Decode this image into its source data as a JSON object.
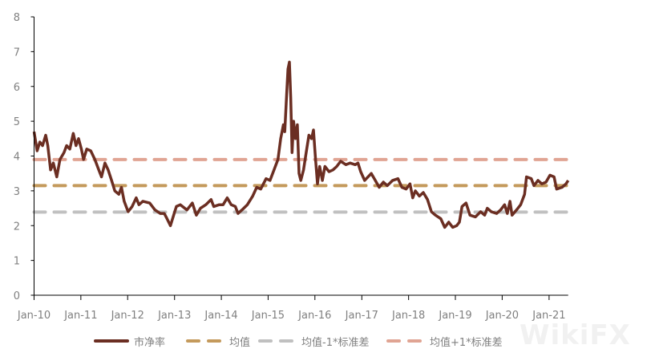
{
  "chart_data": {
    "type": "line",
    "title": "",
    "xlabel": "",
    "ylabel": "",
    "ylim": [
      0,
      8
    ],
    "yticks": [
      "0",
      "1",
      "2",
      "3",
      "4",
      "5",
      "6",
      "7",
      "8"
    ],
    "xlim": [
      "2010-01-01",
      "2021-05-30"
    ],
    "xticks": [
      {
        "date": "2010-01-01",
        "label": "Jan-10"
      },
      {
        "date": "2011-01-01",
        "label": "Jan-11"
      },
      {
        "date": "2012-01-01",
        "label": "Jan-12"
      },
      {
        "date": "2013-01-01",
        "label": "Jan-13"
      },
      {
        "date": "2014-01-01",
        "label": "Jan-14"
      },
      {
        "date": "2015-01-01",
        "label": "Jan-15"
      },
      {
        "date": "2016-01-01",
        "label": "Jan-16"
      },
      {
        "date": "2017-01-01",
        "label": "Jan-17"
      },
      {
        "date": "2018-01-01",
        "label": "Jan-18"
      },
      {
        "date": "2019-01-01",
        "label": "Jan-19"
      },
      {
        "date": "2020-01-01",
        "label": "Jan-20"
      },
      {
        "date": "2021-01-01",
        "label": "Jan-21"
      }
    ],
    "grid": false,
    "legend_placement": "bottom",
    "series": [
      {
        "name": "市净率",
        "color": "#6b2e22",
        "style": "solid",
        "points": [
          [
            "2010-01-01",
            4.7
          ],
          [
            "2010-01-25",
            4.15
          ],
          [
            "2010-02-15",
            4.4
          ],
          [
            "2010-03-08",
            4.3
          ],
          [
            "2010-04-02",
            4.6
          ],
          [
            "2010-04-18",
            4.3
          ],
          [
            "2010-05-10",
            3.6
          ],
          [
            "2010-05-31",
            3.8
          ],
          [
            "2010-06-27",
            3.4
          ],
          [
            "2010-07-22",
            3.9
          ],
          [
            "2010-08-22",
            4.1
          ],
          [
            "2010-09-12",
            4.3
          ],
          [
            "2010-10-07",
            4.2
          ],
          [
            "2010-11-03",
            4.65
          ],
          [
            "2010-11-24",
            4.3
          ],
          [
            "2010-12-14",
            4.5
          ],
          [
            "2011-01-05",
            4.2
          ],
          [
            "2011-01-22",
            3.9
          ],
          [
            "2011-02-16",
            4.2
          ],
          [
            "2011-03-19",
            4.15
          ],
          [
            "2011-04-20",
            3.9
          ],
          [
            "2011-05-21",
            3.6
          ],
          [
            "2011-06-11",
            3.4
          ],
          [
            "2011-07-08",
            3.8
          ],
          [
            "2011-08-02",
            3.6
          ],
          [
            "2011-08-29",
            3.3
          ],
          [
            "2011-09-23",
            3.0
          ],
          [
            "2011-10-24",
            2.9
          ],
          [
            "2011-11-14",
            3.1
          ],
          [
            "2011-12-05",
            2.7
          ],
          [
            "2012-01-05",
            2.4
          ],
          [
            "2012-02-05",
            2.55
          ],
          [
            "2012-03-08",
            2.8
          ],
          [
            "2012-03-29",
            2.6
          ],
          [
            "2012-04-29",
            2.7
          ],
          [
            "2012-06-21",
            2.65
          ],
          [
            "2012-08-01",
            2.45
          ],
          [
            "2012-09-12",
            2.35
          ],
          [
            "2012-10-13",
            2.35
          ],
          [
            "2012-11-03",
            2.2
          ],
          [
            "2012-11-30",
            2.0
          ],
          [
            "2012-12-25",
            2.3
          ],
          [
            "2013-01-15",
            2.55
          ],
          [
            "2013-02-15",
            2.6
          ],
          [
            "2013-04-08",
            2.45
          ],
          [
            "2013-05-20",
            2.65
          ],
          [
            "2013-06-20",
            2.3
          ],
          [
            "2013-07-22",
            2.5
          ],
          [
            "2013-09-02",
            2.6
          ],
          [
            "2013-10-13",
            2.75
          ],
          [
            "2013-11-03",
            2.55
          ],
          [
            "2013-12-15",
            2.6
          ],
          [
            "2014-01-15",
            2.6
          ],
          [
            "2014-02-16",
            2.8
          ],
          [
            "2014-03-19",
            2.6
          ],
          [
            "2014-04-20",
            2.55
          ],
          [
            "2014-05-11",
            2.35
          ],
          [
            "2014-06-11",
            2.45
          ],
          [
            "2014-07-23",
            2.6
          ],
          [
            "2014-09-03",
            2.85
          ],
          [
            "2014-10-04",
            3.1
          ],
          [
            "2014-11-04",
            3.05
          ],
          [
            "2014-12-16",
            3.35
          ],
          [
            "2015-01-16",
            3.3
          ],
          [
            "2015-02-16",
            3.6
          ],
          [
            "2015-03-19",
            3.9
          ],
          [
            "2015-04-09",
            4.5
          ],
          [
            "2015-04-30",
            4.9
          ],
          [
            "2015-05-11",
            4.7
          ],
          [
            "2015-05-26",
            5.8
          ],
          [
            "2015-06-05",
            6.5
          ],
          [
            "2015-06-16",
            6.7
          ],
          [
            "2015-06-26",
            5.7
          ],
          [
            "2015-07-07",
            4.1
          ],
          [
            "2015-07-19",
            5.0
          ],
          [
            "2015-08-03",
            4.5
          ],
          [
            "2015-08-17",
            4.9
          ],
          [
            "2015-08-30",
            3.5
          ],
          [
            "2015-09-13",
            3.3
          ],
          [
            "2015-10-04",
            3.6
          ],
          [
            "2015-10-25",
            4.1
          ],
          [
            "2015-11-15",
            4.6
          ],
          [
            "2015-12-06",
            4.5
          ],
          [
            "2015-12-21",
            4.75
          ],
          [
            "2016-01-06",
            3.9
          ],
          [
            "2016-01-21",
            3.2
          ],
          [
            "2016-02-07",
            3.7
          ],
          [
            "2016-02-28",
            3.3
          ],
          [
            "2016-03-19",
            3.7
          ],
          [
            "2016-04-20",
            3.55
          ],
          [
            "2016-05-21",
            3.6
          ],
          [
            "2016-06-19",
            3.7
          ],
          [
            "2016-07-20",
            3.85
          ],
          [
            "2016-08-30",
            3.75
          ],
          [
            "2016-10-01",
            3.8
          ],
          [
            "2016-11-11",
            3.75
          ],
          [
            "2016-12-02",
            3.8
          ],
          [
            "2016-12-23",
            3.55
          ],
          [
            "2017-01-23",
            3.3
          ],
          [
            "2017-03-16",
            3.5
          ],
          [
            "2017-04-16",
            3.3
          ],
          [
            "2017-05-17",
            3.1
          ],
          [
            "2017-06-18",
            3.25
          ],
          [
            "2017-07-19",
            3.15
          ],
          [
            "2017-08-29",
            3.3
          ],
          [
            "2017-10-10",
            3.35
          ],
          [
            "2017-11-10",
            3.1
          ],
          [
            "2017-12-12",
            3.05
          ],
          [
            "2018-01-12",
            3.2
          ],
          [
            "2018-02-02",
            2.8
          ],
          [
            "2018-02-23",
            3.0
          ],
          [
            "2018-03-26",
            2.85
          ],
          [
            "2018-04-26",
            2.95
          ],
          [
            "2018-05-28",
            2.75
          ],
          [
            "2018-06-28",
            2.4
          ],
          [
            "2018-07-29",
            2.3
          ],
          [
            "2018-09-09",
            2.2
          ],
          [
            "2018-10-10",
            1.95
          ],
          [
            "2018-11-10",
            2.1
          ],
          [
            "2018-12-11",
            1.95
          ],
          [
            "2019-01-11",
            2.0
          ],
          [
            "2019-02-01",
            2.1
          ],
          [
            "2019-02-22",
            2.55
          ],
          [
            "2019-03-25",
            2.65
          ],
          [
            "2019-04-25",
            2.3
          ],
          [
            "2019-06-06",
            2.25
          ],
          [
            "2019-07-17",
            2.4
          ],
          [
            "2019-08-17",
            2.3
          ],
          [
            "2019-09-07",
            2.5
          ],
          [
            "2019-10-08",
            2.4
          ],
          [
            "2019-11-19",
            2.35
          ],
          [
            "2019-12-20",
            2.45
          ],
          [
            "2020-01-20",
            2.6
          ],
          [
            "2020-02-10",
            2.35
          ],
          [
            "2020-03-02",
            2.7
          ],
          [
            "2020-03-18",
            2.3
          ],
          [
            "2020-04-22",
            2.45
          ],
          [
            "2020-05-24",
            2.6
          ],
          [
            "2020-06-24",
            2.9
          ],
          [
            "2020-07-09",
            3.4
          ],
          [
            "2020-08-15",
            3.35
          ],
          [
            "2020-09-05",
            3.15
          ],
          [
            "2020-10-06",
            3.3
          ],
          [
            "2020-11-06",
            3.2
          ],
          [
            "2020-12-08",
            3.25
          ],
          [
            "2021-01-08",
            3.45
          ],
          [
            "2021-02-09",
            3.4
          ],
          [
            "2021-03-01",
            3.05
          ],
          [
            "2021-04-12",
            3.1
          ],
          [
            "2021-05-13",
            3.2
          ],
          [
            "2021-05-30",
            3.3
          ]
        ]
      },
      {
        "name": "均值",
        "color": "#c49a5c",
        "style": "dashed",
        "value": 3.15
      },
      {
        "name": "均值-1*标准差",
        "color": "#c0c0c0",
        "style": "dashed",
        "value": 2.39
      },
      {
        "name": "均值+1*标准差",
        "color": "#e0a493",
        "style": "dashed",
        "value": 3.9
      }
    ]
  },
  "watermark": "WikiFX"
}
